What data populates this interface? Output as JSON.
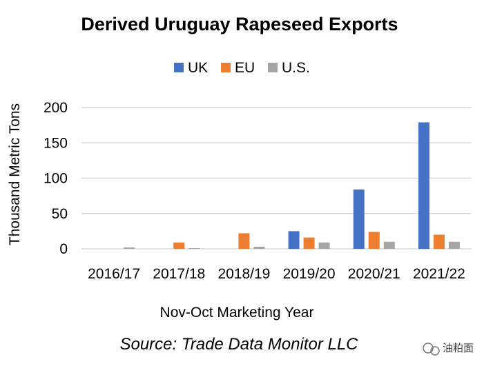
{
  "chart_data": {
    "type": "bar",
    "title": "Derived Uruguay Rapeseed Exports",
    "xlabel": "Nov-Oct Marketing Year",
    "ylabel": "Thousand Metric Tons",
    "categories": [
      "2016/17",
      "2017/18",
      "2018/19",
      "2019/20",
      "2020/21",
      "2021/22"
    ],
    "series": [
      {
        "name": "UK",
        "color": "#4472C4",
        "values": [
          0,
          0,
          0,
          25,
          84,
          179
        ]
      },
      {
        "name": "EU",
        "color": "#ED7D31",
        "values": [
          0,
          9,
          22,
          16,
          24,
          20
        ]
      },
      {
        "name": "U.S.",
        "color": "#A5A5A5",
        "values": [
          2,
          1,
          3,
          9,
          10,
          10
        ]
      }
    ],
    "yticks": [
      0,
      50,
      100,
      150,
      200
    ],
    "ylim": [
      0,
      200
    ],
    "grid": true,
    "legend_position": "top"
  },
  "source": "Source: Trade Data Monitor LLC",
  "watermark": "油粕面"
}
